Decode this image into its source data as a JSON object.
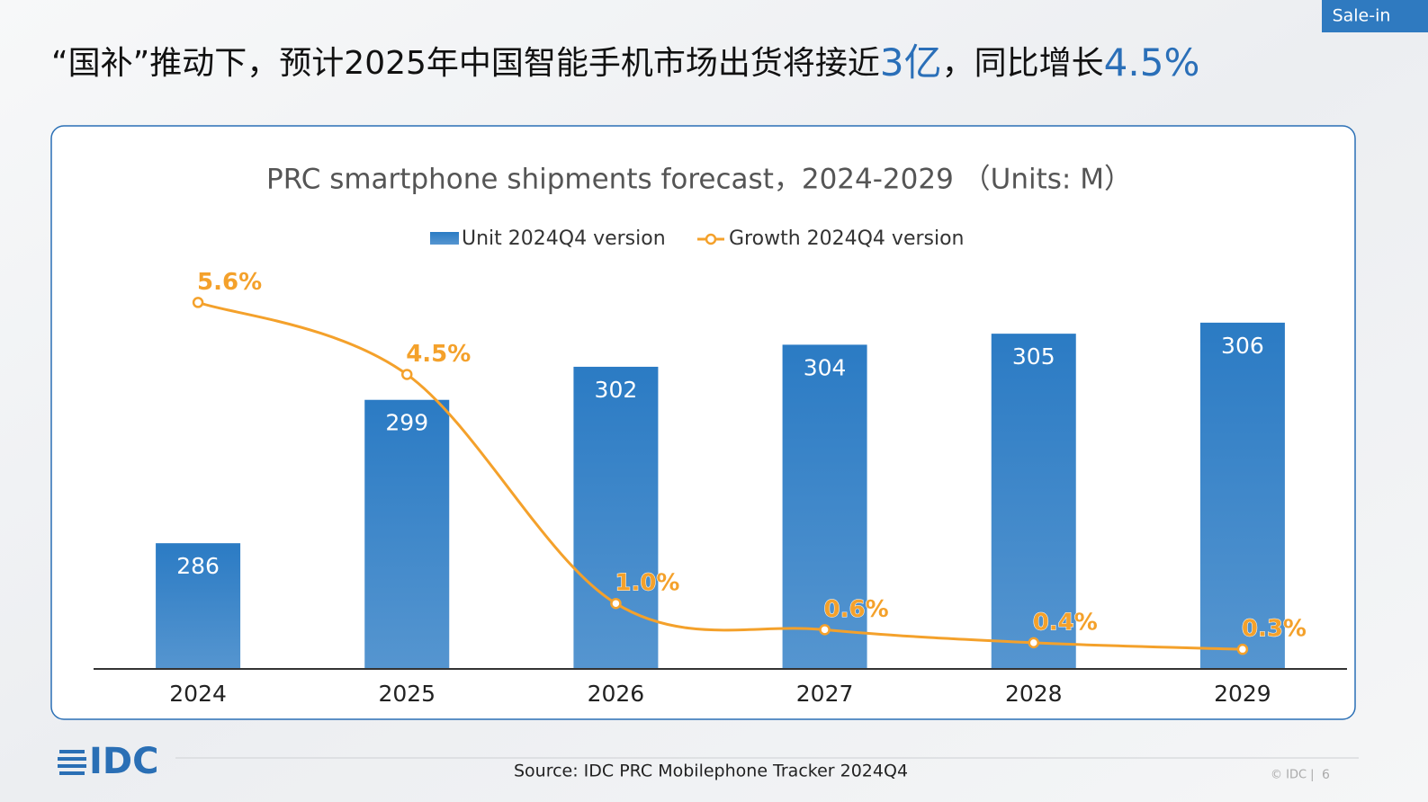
{
  "badge": "Sale-in",
  "headline": {
    "parts": [
      "“国补”推动下，预计2025年中国智能手机市场出货将接近",
      "3亿",
      "，同比增长",
      "4.5%"
    ]
  },
  "chart_data": {
    "type": "bar-line",
    "title": "PRC smartphone shipments forecast，2024-2029 （Units: M）",
    "categories": [
      "2024",
      "2025",
      "2026",
      "2027",
      "2028",
      "2029"
    ],
    "series": [
      {
        "name": "Unit 2024Q4 version",
        "type": "bar",
        "color": "#2b7bc4",
        "values": [
          286,
          299,
          302,
          304,
          305,
          306
        ]
      },
      {
        "name": "Growth 2024Q4 version",
        "type": "line",
        "axis": "y2",
        "color": "#f4a12b",
        "values": [
          5.6,
          4.5,
          1.0,
          0.6,
          0.4,
          0.3
        ],
        "value_labels": [
          "5.6%",
          "4.5%",
          "1.0%",
          "0.6%",
          "0.4%",
          "0.3%"
        ]
      }
    ],
    "ylim": [
      274.6,
      310.8
    ],
    "y2lim": [
      0,
      6.1
    ],
    "legend": "top"
  },
  "footer": {
    "logo": "IDC",
    "source": "Source: IDC PRC Mobilephone Tracker 2024Q4",
    "copyright": "© IDC |",
    "page": "6"
  }
}
